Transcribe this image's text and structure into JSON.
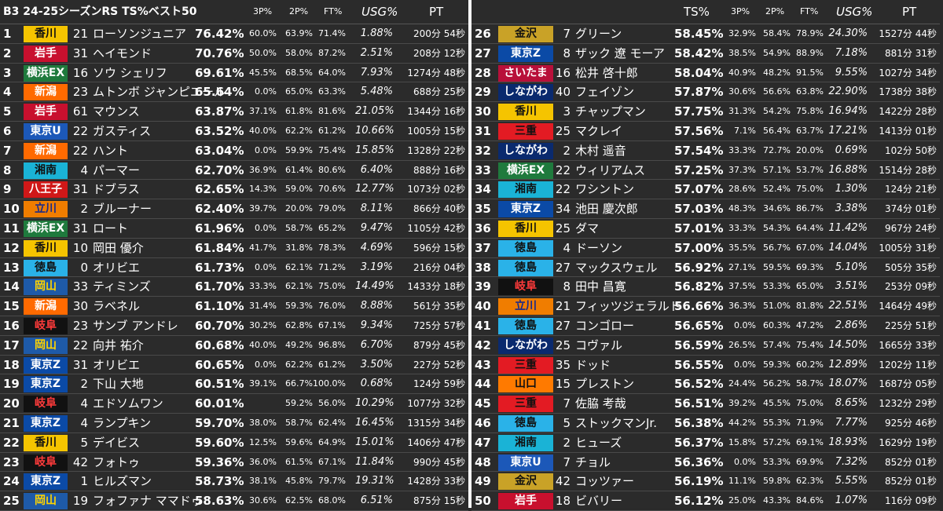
{
  "left_header": {
    "title": "B3 24-25シーズンRS  TS%ベスト50",
    "p3": "3P%",
    "p2": "2P%",
    "ft": "FT%",
    "usg": "USG%",
    "pt": "PT"
  },
  "right_header": {
    "ts": "TS%",
    "p3": "3P%",
    "p2": "2P%",
    "ft": "FT%",
    "usg": "USG%",
    "pt": "PT"
  },
  "team_colors": {
    "香川": {
      "bg": "#f5c400",
      "fg": "#111111"
    },
    "岩手": {
      "bg": "#c8102e",
      "fg": "#ffffff"
    },
    "横浜EX": {
      "bg": "#1f7a3d",
      "fg": "#ffffff"
    },
    "新潟": {
      "bg": "#ff6a00",
      "fg": "#ffffff"
    },
    "東京U": {
      "bg": "#1c58b8",
      "fg": "#ffffff"
    },
    "湘南": {
      "bg": "#1ab3d6",
      "fg": "#111111"
    },
    "八王子": {
      "bg": "#d01818",
      "fg": "#ffffff"
    },
    "立川": {
      "bg": "#f07d00",
      "fg": "#1a2a8a"
    },
    "徳島": {
      "bg": "#2ab2e8",
      "fg": "#111111"
    },
    "岡山": {
      "bg": "#1e5aa8",
      "fg": "#ffd400"
    },
    "岐阜": {
      "bg": "#111111",
      "fg": "#ff3b3b"
    },
    "東京Z": {
      "bg": "#0b4aa6",
      "fg": "#ffffff"
    },
    "金沢": {
      "bg": "#c9a227",
      "fg": "#111111"
    },
    "さいたま": {
      "bg": "#b8103a",
      "fg": "#ffffff"
    },
    "しながわ": {
      "bg": "#0a2a6e",
      "fg": "#ffffff"
    },
    "三重": {
      "bg": "#e31b23",
      "fg": "#111111"
    },
    "山口": {
      "bg": "#ff7a00",
      "fg": "#111111"
    }
  },
  "left_rows": [
    {
      "rank": "1",
      "team": "香川",
      "num": "21",
      "name": "ローソンジュニア",
      "ts": "76.42%",
      "p3": "60.0%",
      "p2": "63.9%",
      "ft": "71.4%",
      "usg": "1.88%",
      "pt": "200分 54秒"
    },
    {
      "rank": "2",
      "team": "岩手",
      "num": "31",
      "name": "ヘイモンド",
      "ts": "70.76%",
      "p3": "50.0%",
      "p2": "58.0%",
      "ft": "87.2%",
      "usg": "2.51%",
      "pt": "208分 12秒"
    },
    {
      "rank": "3",
      "team": "横浜EX",
      "num": "16",
      "name": "ソウ シェリフ",
      "ts": "69.61%",
      "p3": "45.5%",
      "p2": "68.5%",
      "ft": "64.0%",
      "usg": "7.93%",
      "pt": "1274分 48秒"
    },
    {
      "rank": "4",
      "team": "新潟",
      "num": "23",
      "name": "ムトンボ ジャンピエール",
      "ts": "65.64%",
      "p3": "0.0%",
      "p2": "65.0%",
      "ft": "63.3%",
      "usg": "5.48%",
      "pt": "688分 25秒"
    },
    {
      "rank": "5",
      "team": "岩手",
      "num": "61",
      "name": "マウンス",
      "ts": "63.87%",
      "p3": "37.1%",
      "p2": "61.8%",
      "ft": "81.6%",
      "usg": "21.05%",
      "pt": "1344分 16秒"
    },
    {
      "rank": "6",
      "team": "東京U",
      "num": "22",
      "name": "ガスティス",
      "ts": "63.52%",
      "p3": "40.0%",
      "p2": "62.2%",
      "ft": "61.2%",
      "usg": "10.66%",
      "pt": "1005分 15秒"
    },
    {
      "rank": "7",
      "team": "新潟",
      "num": "22",
      "name": "ハント",
      "ts": "63.04%",
      "p3": "0.0%",
      "p2": "59.9%",
      "ft": "75.4%",
      "usg": "15.85%",
      "pt": "1328分 22秒"
    },
    {
      "rank": "8",
      "team": "湘南",
      "num": "4",
      "name": "パーマー",
      "ts": "62.70%",
      "p3": "36.9%",
      "p2": "61.4%",
      "ft": "80.6%",
      "usg": "6.40%",
      "pt": "888分 16秒"
    },
    {
      "rank": "9",
      "team": "八王子",
      "num": "31",
      "name": "ドブラス",
      "ts": "62.65%",
      "p3": "14.3%",
      "p2": "59.0%",
      "ft": "70.6%",
      "usg": "12.77%",
      "pt": "1073分 02秒"
    },
    {
      "rank": "10",
      "team": "立川",
      "num": "2",
      "name": "ブルーナー",
      "ts": "62.40%",
      "p3": "39.7%",
      "p2": "20.0%",
      "ft": "79.0%",
      "usg": "8.11%",
      "pt": "866分 40秒"
    },
    {
      "rank": "11",
      "team": "横浜EX",
      "num": "31",
      "name": "ロート",
      "ts": "61.96%",
      "p3": "0.0%",
      "p2": "58.7%",
      "ft": "65.2%",
      "usg": "9.47%",
      "pt": "1105分 42秒"
    },
    {
      "rank": "12",
      "team": "香川",
      "num": "10",
      "name": "岡田 優介",
      "ts": "61.84%",
      "p3": "41.7%",
      "p2": "31.8%",
      "ft": "78.3%",
      "usg": "4.69%",
      "pt": "596分 15秒"
    },
    {
      "rank": "13",
      "team": "徳島",
      "num": "0",
      "name": "オリビエ",
      "ts": "61.73%",
      "p3": "0.0%",
      "p2": "62.1%",
      "ft": "71.2%",
      "usg": "3.19%",
      "pt": "216分 04秒"
    },
    {
      "rank": "14",
      "team": "岡山",
      "num": "33",
      "name": "ティミンズ",
      "ts": "61.70%",
      "p3": "33.3%",
      "p2": "62.1%",
      "ft": "75.0%",
      "usg": "14.49%",
      "pt": "1433分 18秒"
    },
    {
      "rank": "15",
      "team": "新潟",
      "num": "30",
      "name": "ラベネル",
      "ts": "61.10%",
      "p3": "31.4%",
      "p2": "59.3%",
      "ft": "76.0%",
      "usg": "8.88%",
      "pt": "561分 35秒"
    },
    {
      "rank": "16",
      "team": "岐阜",
      "num": "23",
      "name": "サンブ アンドレ",
      "ts": "60.70%",
      "p3": "30.2%",
      "p2": "62.8%",
      "ft": "67.1%",
      "usg": "9.34%",
      "pt": "725分 57秒"
    },
    {
      "rank": "17",
      "team": "岡山",
      "num": "22",
      "name": "向井 祐介",
      "ts": "60.68%",
      "p3": "40.0%",
      "p2": "49.2%",
      "ft": "96.8%",
      "usg": "6.70%",
      "pt": "879分 45秒"
    },
    {
      "rank": "18",
      "team": "東京Z",
      "num": "31",
      "name": "オリビエ",
      "ts": "60.65%",
      "p3": "0.0%",
      "p2": "62.2%",
      "ft": "61.2%",
      "usg": "3.50%",
      "pt": "227分 52秒"
    },
    {
      "rank": "19",
      "team": "東京Z",
      "num": "2",
      "name": "下山 大地",
      "ts": "60.51%",
      "p3": "39.1%",
      "p2": "66.7%",
      "ft": "100.0%",
      "usg": "0.68%",
      "pt": "124分 59秒"
    },
    {
      "rank": "20",
      "team": "岐阜",
      "num": "4",
      "name": "エドソムワン",
      "ts": "60.01%",
      "p3": "",
      "p2": "59.2%",
      "ft": "56.0%",
      "usg": "10.29%",
      "pt": "1077分 32秒"
    },
    {
      "rank": "21",
      "team": "東京Z",
      "num": "4",
      "name": "ランプキン",
      "ts": "59.70%",
      "p3": "38.0%",
      "p2": "58.7%",
      "ft": "62.4%",
      "usg": "16.45%",
      "pt": "1315分 34秒"
    },
    {
      "rank": "22",
      "team": "香川",
      "num": "5",
      "name": "デイビス",
      "ts": "59.60%",
      "p3": "12.5%",
      "p2": "59.6%",
      "ft": "64.9%",
      "usg": "15.01%",
      "pt": "1406分 47秒"
    },
    {
      "rank": "23",
      "team": "岐阜",
      "num": "42",
      "name": "フォトゥ",
      "ts": "59.36%",
      "p3": "36.0%",
      "p2": "61.5%",
      "ft": "67.1%",
      "usg": "11.84%",
      "pt": "990分 45秒"
    },
    {
      "rank": "24",
      "team": "東京Z",
      "num": "1",
      "name": "ヒルズマン",
      "ts": "58.73%",
      "p3": "38.1%",
      "p2": "45.8%",
      "ft": "79.7%",
      "usg": "19.31%",
      "pt": "1428分 33秒"
    },
    {
      "rank": "25",
      "team": "岡山",
      "num": "19",
      "name": "フォファナ ママドゥ",
      "ts": "58.63%",
      "p3": "30.6%",
      "p2": "62.5%",
      "ft": "68.0%",
      "usg": "6.51%",
      "pt": "875分 15秒"
    }
  ],
  "right_rows": [
    {
      "rank": "26",
      "team": "金沢",
      "num": "7",
      "name": "グリーン",
      "ts": "58.45%",
      "p3": "32.9%",
      "p2": "58.4%",
      "ft": "78.9%",
      "usg": "24.30%",
      "pt": "1527分 44秒"
    },
    {
      "rank": "27",
      "team": "東京Z",
      "num": "8",
      "name": "ザック 遼 モーア",
      "ts": "58.42%",
      "p3": "38.5%",
      "p2": "54.9%",
      "ft": "88.9%",
      "usg": "7.18%",
      "pt": "881分 31秒"
    },
    {
      "rank": "28",
      "team": "さいたま",
      "num": "16",
      "name": "松井 啓十郎",
      "ts": "58.04%",
      "p3": "40.9%",
      "p2": "48.2%",
      "ft": "91.5%",
      "usg": "9.55%",
      "pt": "1027分 34秒"
    },
    {
      "rank": "29",
      "team": "しながわ",
      "num": "40",
      "name": "フェイゾン",
      "ts": "57.87%",
      "p3": "30.6%",
      "p2": "56.6%",
      "ft": "63.8%",
      "usg": "22.90%",
      "pt": "1738分 38秒"
    },
    {
      "rank": "30",
      "team": "香川",
      "num": "3",
      "name": "チャップマン",
      "ts": "57.75%",
      "p3": "31.3%",
      "p2": "54.2%",
      "ft": "75.8%",
      "usg": "16.94%",
      "pt": "1422分 28秒"
    },
    {
      "rank": "31",
      "team": "三重",
      "num": "25",
      "name": "マクレイ",
      "ts": "57.56%",
      "p3": "7.1%",
      "p2": "56.4%",
      "ft": "63.7%",
      "usg": "17.21%",
      "pt": "1413分 01秒"
    },
    {
      "rank": "32",
      "team": "しながわ",
      "num": "2",
      "name": "木村 遥音",
      "ts": "57.54%",
      "p3": "33.3%",
      "p2": "72.7%",
      "ft": "20.0%",
      "usg": "0.69%",
      "pt": "102分 50秒"
    },
    {
      "rank": "33",
      "team": "横浜EX",
      "num": "22",
      "name": "ウィリアムス",
      "ts": "57.25%",
      "p3": "37.3%",
      "p2": "57.1%",
      "ft": "53.7%",
      "usg": "16.88%",
      "pt": "1514分 28秒"
    },
    {
      "rank": "34",
      "team": "湘南",
      "num": "22",
      "name": "ワシントン",
      "ts": "57.07%",
      "p3": "28.6%",
      "p2": "52.4%",
      "ft": "75.0%",
      "usg": "1.30%",
      "pt": "124分 21秒"
    },
    {
      "rank": "35",
      "team": "東京Z",
      "num": "34",
      "name": "池田 慶次郎",
      "ts": "57.03%",
      "p3": "48.3%",
      "p2": "34.6%",
      "ft": "86.7%",
      "usg": "3.38%",
      "pt": "374分 01秒"
    },
    {
      "rank": "36",
      "team": "香川",
      "num": "25",
      "name": "ダマ",
      "ts": "57.01%",
      "p3": "33.3%",
      "p2": "54.3%",
      "ft": "64.4%",
      "usg": "11.42%",
      "pt": "967分 24秒"
    },
    {
      "rank": "37",
      "team": "徳島",
      "num": "4",
      "name": "ドーソン",
      "ts": "57.00%",
      "p3": "35.5%",
      "p2": "56.7%",
      "ft": "67.0%",
      "usg": "14.04%",
      "pt": "1005分 31秒"
    },
    {
      "rank": "38",
      "team": "徳島",
      "num": "27",
      "name": "マックスウェル",
      "ts": "56.92%",
      "p3": "27.1%",
      "p2": "59.5%",
      "ft": "69.3%",
      "usg": "5.10%",
      "pt": "505分 35秒"
    },
    {
      "rank": "39",
      "team": "岐阜",
      "num": "8",
      "name": "田中 昌寛",
      "ts": "56.82%",
      "p3": "37.5%",
      "p2": "53.3%",
      "ft": "65.0%",
      "usg": "3.51%",
      "pt": "253分 09秒"
    },
    {
      "rank": "40",
      "team": "立川",
      "num": "21",
      "name": "フィッツジェラルド",
      "ts": "56.66%",
      "p3": "36.3%",
      "p2": "51.0%",
      "ft": "81.8%",
      "usg": "22.51%",
      "pt": "1464分 49秒"
    },
    {
      "rank": "41",
      "team": "徳島",
      "num": "27",
      "name": "コンゴロー",
      "ts": "56.65%",
      "p3": "0.0%",
      "p2": "60.3%",
      "ft": "47.2%",
      "usg": "2.86%",
      "pt": "225分 51秒"
    },
    {
      "rank": "42",
      "team": "しながわ",
      "num": "25",
      "name": "コヴァル",
      "ts": "56.59%",
      "p3": "26.5%",
      "p2": "57.4%",
      "ft": "75.4%",
      "usg": "14.50%",
      "pt": "1665分 33秒"
    },
    {
      "rank": "43",
      "team": "三重",
      "num": "35",
      "name": "ドッド",
      "ts": "56.55%",
      "p3": "0.0%",
      "p2": "59.3%",
      "ft": "60.2%",
      "usg": "12.89%",
      "pt": "1202分 11秒"
    },
    {
      "rank": "44",
      "team": "山口",
      "num": "15",
      "name": "プレストン",
      "ts": "56.52%",
      "p3": "24.4%",
      "p2": "56.2%",
      "ft": "58.7%",
      "usg": "18.07%",
      "pt": "1687分 05秒"
    },
    {
      "rank": "45",
      "team": "三重",
      "num": "7",
      "name": "佐脇 考哉",
      "ts": "56.51%",
      "p3": "39.2%",
      "p2": "45.5%",
      "ft": "75.0%",
      "usg": "8.65%",
      "pt": "1232分 29秒"
    },
    {
      "rank": "46",
      "team": "徳島",
      "num": "5",
      "name": "ストックマンJr.",
      "ts": "56.38%",
      "p3": "44.2%",
      "p2": "55.3%",
      "ft": "71.9%",
      "usg": "7.77%",
      "pt": "925分 46秒"
    },
    {
      "rank": "47",
      "team": "湘南",
      "num": "2",
      "name": "ヒューズ",
      "ts": "56.37%",
      "p3": "15.8%",
      "p2": "57.2%",
      "ft": "69.1%",
      "usg": "18.93%",
      "pt": "1629分 19秒"
    },
    {
      "rank": "48",
      "team": "東京U",
      "num": "7",
      "name": "チョル",
      "ts": "56.36%",
      "p3": "0.0%",
      "p2": "53.3%",
      "ft": "69.9%",
      "usg": "7.32%",
      "pt": "852分 01秒"
    },
    {
      "rank": "49",
      "team": "金沢",
      "num": "42",
      "name": "コッツァー",
      "ts": "56.19%",
      "p3": "11.1%",
      "p2": "59.8%",
      "ft": "62.3%",
      "usg": "5.55%",
      "pt": "852分 01秒"
    },
    {
      "rank": "50",
      "team": "岩手",
      "num": "18",
      "name": "ビバリー",
      "ts": "56.12%",
      "p3": "25.0%",
      "p2": "43.3%",
      "ft": "84.6%",
      "usg": "1.07%",
      "pt": "116分 09秒"
    }
  ]
}
